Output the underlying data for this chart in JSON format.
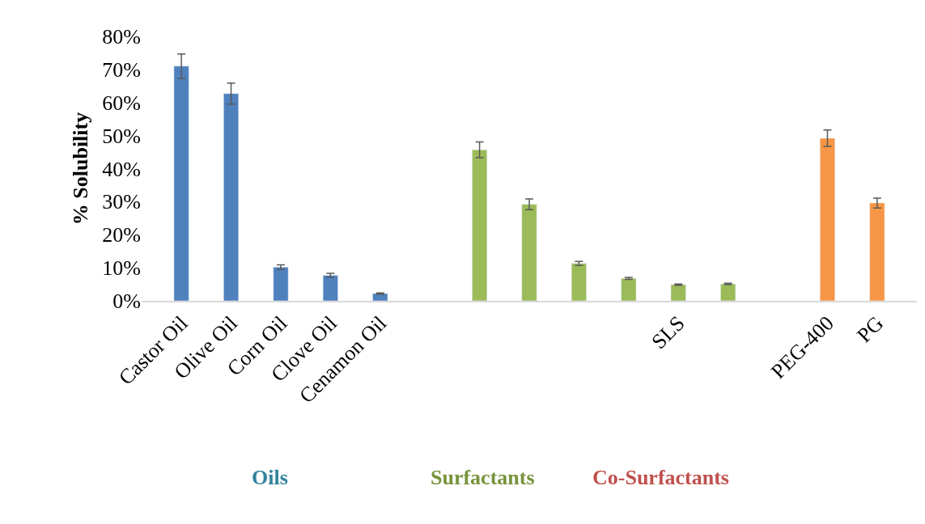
{
  "chart_data": {
    "type": "bar",
    "ylabel": "% Solubility",
    "categories": [
      "Castor Oil",
      "Olive Oil",
      "Corn Oil",
      "Clove Oil",
      "Cenamon Oil",
      null,
      null,
      null,
      null,
      null,
      "SLS",
      null,
      null,
      "PEG-400",
      "PG"
    ],
    "values": [
      71.0,
      62.7,
      10.2,
      7.7,
      2.2,
      null,
      45.7,
      29.2,
      11.3,
      6.8,
      4.9,
      5.1,
      null,
      49.2,
      29.6
    ],
    "errors": [
      3.7,
      3.2,
      0.7,
      0.6,
      0.2,
      null,
      2.4,
      1.6,
      0.6,
      0.3,
      0.2,
      0.2,
      null,
      2.5,
      1.5
    ],
    "colors": [
      "#4f81bd",
      "#4f81bd",
      "#4f81bd",
      "#4f81bd",
      "#4f81bd",
      null,
      "#9bbb59",
      "#9bbb59",
      "#9bbb59",
      "#9bbb59",
      "#9bbb59",
      "#9bbb59",
      null,
      "#f79646",
      "#f79646"
    ],
    "ylim": [
      0,
      80
    ],
    "yticks": [
      {
        "value": 0,
        "label": "0%"
      },
      {
        "value": 10,
        "label": "10%"
      },
      {
        "value": 20,
        "label": "20%"
      },
      {
        "value": 30,
        "label": "30%"
      },
      {
        "value": 40,
        "label": "40%"
      },
      {
        "value": 50,
        "label": "50%"
      },
      {
        "value": 60,
        "label": "60%"
      },
      {
        "value": 70,
        "label": "70%"
      },
      {
        "value": 80,
        "label": "80%"
      }
    ],
    "annotations": [
      "Oils",
      "Surfactants",
      "Co-Surfactants"
    ]
  }
}
